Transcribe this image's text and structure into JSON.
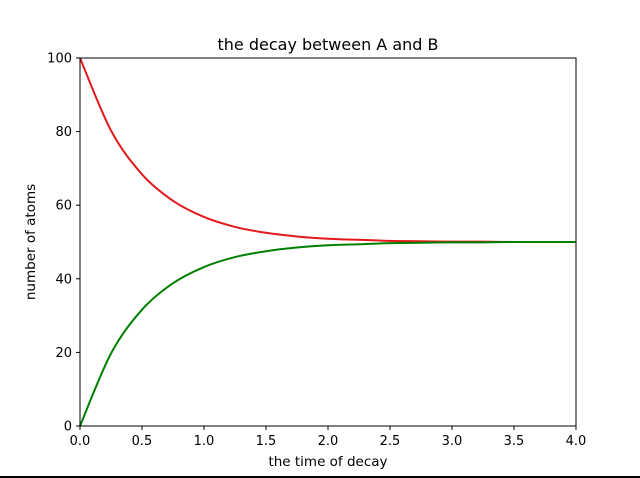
{
  "chart_data": {
    "type": "line",
    "title": "the decay between A and B",
    "xlabel": "the time of decay",
    "ylabel": "number of atoms",
    "xlim": [
      0.0,
      4.0
    ],
    "ylim": [
      0,
      100
    ],
    "x_ticks": [
      "0.0",
      "0.5",
      "1.0",
      "1.5",
      "2.0",
      "2.5",
      "3.0",
      "3.5",
      "4.0"
    ],
    "y_ticks": [
      "0",
      "20",
      "40",
      "60",
      "80",
      "100"
    ],
    "grid": false,
    "legend": "none",
    "x": [
      0.0,
      0.25,
      0.5,
      0.75,
      1.0,
      1.25,
      1.5,
      1.75,
      2.0,
      2.25,
      2.5,
      2.75,
      3.0,
      3.25,
      3.5,
      3.75,
      4.0
    ],
    "series": [
      {
        "color": "#e31a1c",
        "values": [
          100.0,
          80.3,
          68.4,
          61.2,
          56.8,
          54.1,
          52.5,
          51.5,
          50.9,
          50.6,
          50.3,
          50.2,
          50.1,
          50.1,
          50.0,
          50.0,
          50.0
        ]
      },
      {
        "color": "#008000",
        "values": [
          0.0,
          19.7,
          31.6,
          38.8,
          43.2,
          45.9,
          47.5,
          48.5,
          49.1,
          49.4,
          49.7,
          49.8,
          49.9,
          49.9,
          50.0,
          50.0,
          50.0
        ]
      }
    ]
  }
}
